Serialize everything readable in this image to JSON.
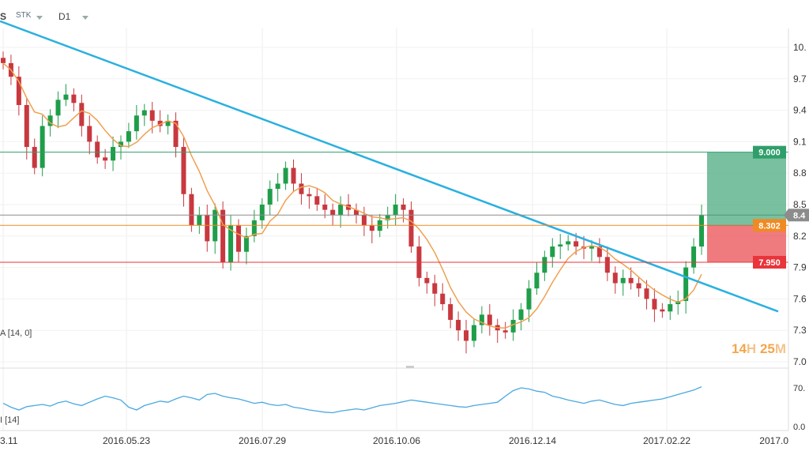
{
  "header": {
    "symbol": "S",
    "type": "STK",
    "timeframe": "D1"
  },
  "timer": {
    "hours": "14",
    "h_unit": "H",
    "minutes": "25",
    "m_unit": "M"
  },
  "indicators": {
    "ma_label": "A [14, 0]",
    "rsi_label": "I [14]"
  },
  "chart_data": [
    {
      "type": "candlestick",
      "x_labels": [
        "3.11",
        "2016.05.23",
        "2016.07.29",
        "2016.10.06",
        "2016.12.14",
        "2017.02.22",
        "2017.0"
      ],
      "y_ticks": [
        "10.",
        "9.7",
        "9.4",
        "9.1",
        "8.8",
        "8.5",
        "8.2",
        "7.9",
        "7.6",
        "7.3",
        "7.0"
      ],
      "ylim": [
        7.0,
        10.0
      ],
      "close": [
        9.85,
        9.72,
        9.45,
        9.05,
        8.85,
        9.25,
        9.35,
        9.5,
        9.55,
        9.47,
        9.25,
        9.1,
        8.95,
        8.92,
        9.05,
        9.1,
        9.2,
        9.35,
        9.4,
        9.3,
        9.25,
        9.3,
        9.05,
        8.6,
        8.3,
        8.4,
        8.15,
        8.45,
        7.95,
        8.3,
        8.05,
        8.2,
        8.35,
        8.5,
        8.65,
        8.7,
        8.85,
        8.7,
        8.6,
        8.58,
        8.5,
        8.45,
        8.4,
        8.5,
        8.45,
        8.4,
        8.3,
        8.25,
        8.35,
        8.4,
        8.5,
        8.45,
        8.1,
        7.8,
        7.75,
        7.65,
        7.55,
        7.4,
        7.3,
        7.2,
        7.35,
        7.45,
        7.35,
        7.3,
        7.28,
        7.4,
        7.5,
        7.7,
        7.85,
        8.0,
        8.1,
        8.12,
        8.15,
        8.1,
        8.08,
        8.1,
        8.0,
        7.85,
        7.75,
        7.8,
        7.75,
        7.7,
        7.6,
        7.5,
        7.48,
        7.55,
        7.58,
        7.9,
        8.1,
        8.4
      ],
      "tags": [
        {
          "label": "9.000",
          "color": "#2f9e6b"
        },
        {
          "label": "8.302",
          "color": "#f08a24"
        },
        {
          "label": "7.950",
          "color": "#e8343a"
        },
        {
          "label": "8.4",
          "color": "#8c8c8c"
        }
      ],
      "colors": {
        "bull": "#1f9e4a",
        "bear": "#c8383f",
        "ma": "#f0a050",
        "trend": "#2ab0e0"
      }
    },
    {
      "type": "line",
      "name": "RSI",
      "y_ticks": [
        "70.",
        "0.0"
      ],
      "ylim": [
        0,
        100
      ],
      "values": [
        42,
        35,
        30,
        36,
        38,
        40,
        37,
        43,
        46,
        41,
        38,
        44,
        50,
        55,
        52,
        48,
        35,
        30,
        38,
        42,
        46,
        44,
        50,
        55,
        52,
        48,
        58,
        60,
        55,
        52,
        50,
        46,
        42,
        44,
        40,
        38,
        40,
        35,
        33,
        30,
        28,
        26,
        25,
        28,
        30,
        32,
        30,
        34,
        38,
        40,
        42,
        45,
        48,
        46,
        44,
        42,
        40,
        38,
        36,
        35,
        38,
        40,
        42,
        44,
        55,
        65,
        70,
        68,
        64,
        62,
        55,
        52,
        48,
        45,
        42,
        46,
        48,
        44,
        40,
        38,
        42,
        44,
        46,
        48,
        50,
        54,
        58,
        62,
        66,
        72
      ]
    }
  ]
}
